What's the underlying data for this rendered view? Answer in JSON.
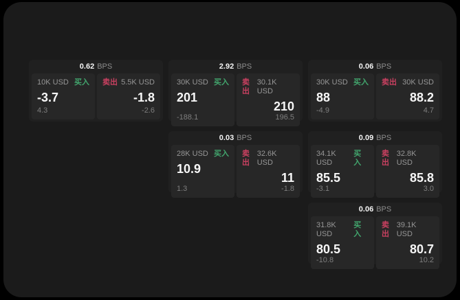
{
  "labels": {
    "bps_unit": "BPS",
    "buy": "买入",
    "sell": "卖出"
  },
  "colors": {
    "page_bg": "#000000",
    "panel_bg": "#1b1b1b",
    "card_bg": "#202020",
    "tile_bg": "#272727",
    "buy_green": "#42a56d",
    "sell_red": "#c84060",
    "text_primary": "#f5f5f5",
    "text_muted": "#8d8d8d"
  },
  "cards": [
    {
      "col": 1,
      "row": 1,
      "bps": "0.62",
      "buy": {
        "size": "10K USD",
        "price": "-3.7",
        "delta": "4.3"
      },
      "sell": {
        "size": "5.5K USD",
        "price": "-1.8",
        "delta": "-2.6"
      }
    },
    {
      "col": 2,
      "row": 1,
      "bps": "2.92",
      "buy": {
        "size": "30K USD",
        "price": "201",
        "delta": "-188.1"
      },
      "sell": {
        "size": "30.1K USD",
        "price": "210",
        "delta": "196.5"
      }
    },
    {
      "col": 3,
      "row": 1,
      "bps": "0.06",
      "buy": {
        "size": "30K USD",
        "price": "88",
        "delta": "-4.9"
      },
      "sell": {
        "size": "30K USD",
        "price": "88.2",
        "delta": "4.7"
      }
    },
    {
      "col": 2,
      "row": 2,
      "bps": "0.03",
      "buy": {
        "size": "28K USD",
        "price": "10.9",
        "delta": "1.3"
      },
      "sell": {
        "size": "32.6K USD",
        "price": "11",
        "delta": "-1.8"
      }
    },
    {
      "col": 3,
      "row": 2,
      "bps": "0.09",
      "buy": {
        "size": "34.1K USD",
        "price": "85.5",
        "delta": "-3.1"
      },
      "sell": {
        "size": "32.8K USD",
        "price": "85.8",
        "delta": "3.0"
      }
    },
    {
      "col": 3,
      "row": 3,
      "bps": "0.06",
      "buy": {
        "size": "31.8K USD",
        "price": "80.5",
        "delta": "-10.8"
      },
      "sell": {
        "size": "39.1K USD",
        "price": "80.7",
        "delta": "10.2"
      }
    }
  ]
}
